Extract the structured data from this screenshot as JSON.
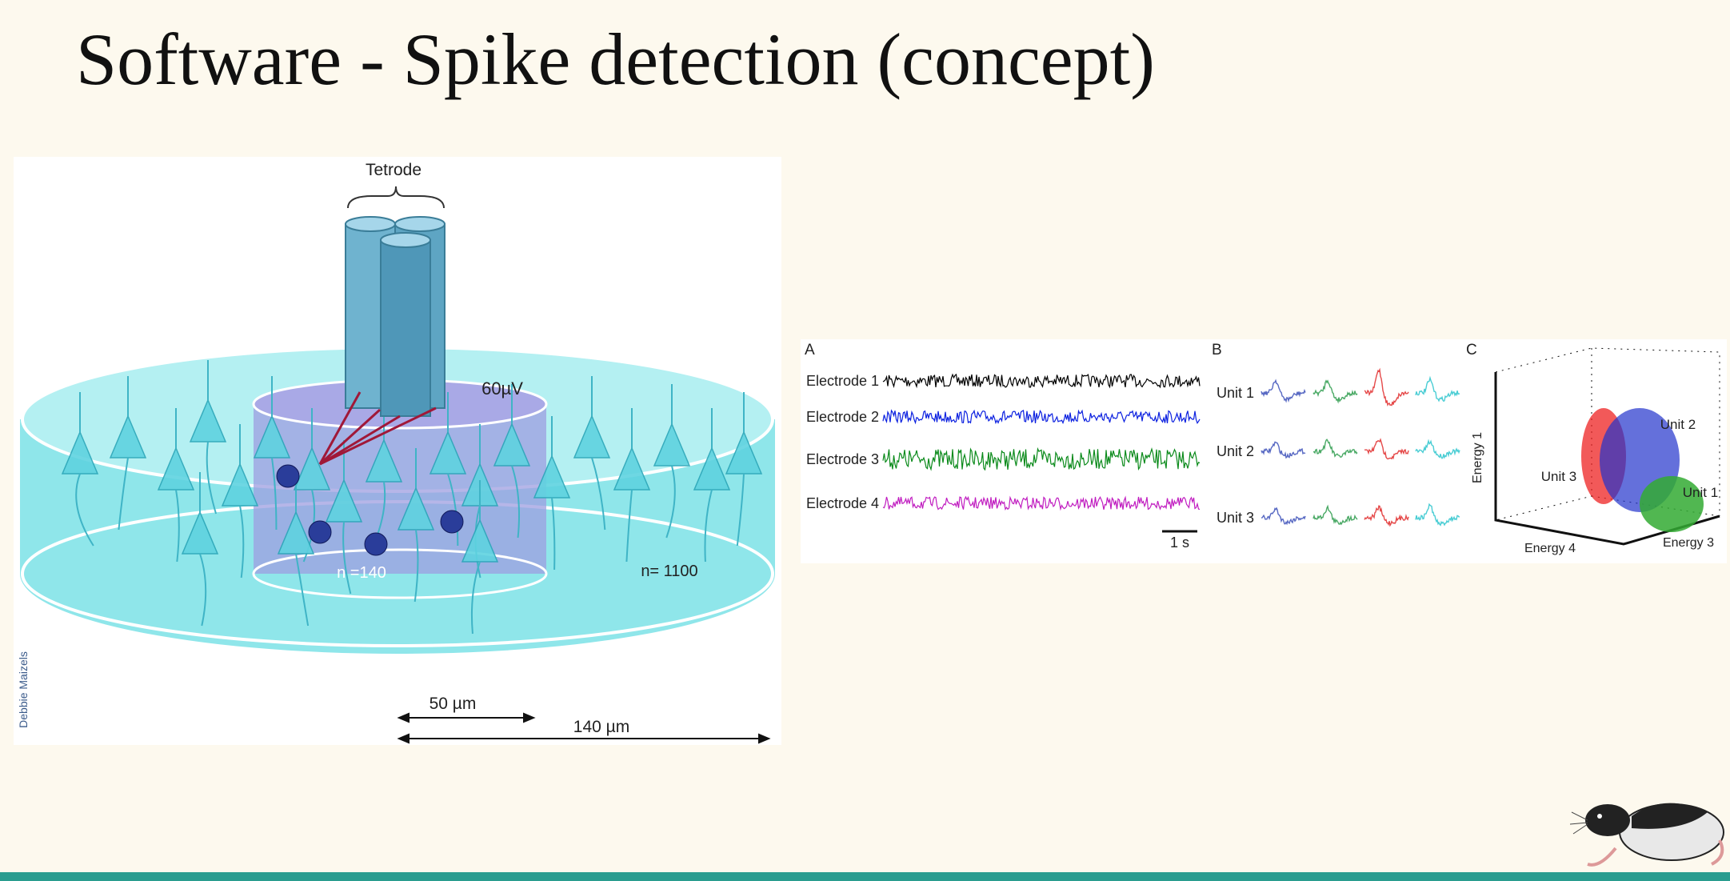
{
  "header": {
    "title": "Software - Spike detection (concept)"
  },
  "tetrode_figure": {
    "tetrode": "Tetrode",
    "voltage": "60µV",
    "inner_count": "n =140",
    "outer_count": "n= 1100",
    "inner_radius": "50 µm",
    "outer_radius": "140 µm",
    "credit": "Debbie Maizels"
  },
  "spike_figure": {
    "panel_a": {
      "letter": "A",
      "electrodes": [
        "Electrode 1",
        "Electrode 2",
        "Electrode 3",
        "Electrode 4"
      ],
      "scale_bar": "1 s"
    },
    "panel_b": {
      "letter": "B",
      "units": [
        "Unit 1",
        "Unit 2",
        "Unit 3"
      ]
    },
    "panel_c": {
      "letter": "C",
      "axis_vertical": "Energy 1",
      "axis_left": "Energy 4",
      "axis_right": "Energy 3",
      "cluster_2": "Unit 2",
      "cluster_3": "Unit 3",
      "cluster_1": "Unit 1"
    }
  }
}
